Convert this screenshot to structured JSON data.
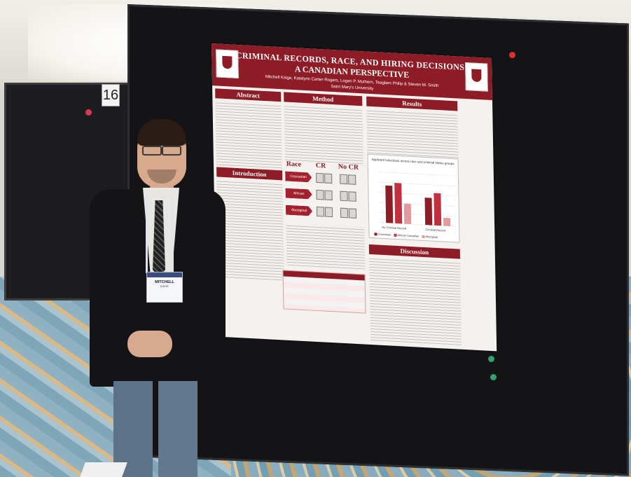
{
  "scene": {
    "board_number": "16"
  },
  "poster": {
    "title_line1": "CRIMINAL RECORDS, RACE, AND HIRING DECISIONS:",
    "title_line2": "A CANADIAN PERSPECTIVE",
    "authors": "Mitchell Kaige, Katelynn Carter-Rogers, Logan P. Mulhern, Teagben Philip & Steven M. Smith",
    "institution": "Saint Mary's University",
    "sections": {
      "abstract": "Abstract",
      "method": "Method",
      "results": "Results",
      "introduction": "Introduction",
      "discussion": "Discussion"
    },
    "method_panel": {
      "col_race": "Race",
      "col_cr": "CR",
      "col_nocr": "No CR",
      "rows": [
        "Caucasian",
        "African Canadian",
        "Aboriginal"
      ]
    }
  },
  "chart_data": {
    "type": "bar",
    "title": "Applicant selections across race and criminal status groups",
    "categories": [
      "No Criminal Record",
      "Criminal Record"
    ],
    "series": [
      {
        "name": "Caucasian",
        "values": [
          37,
          27
        ]
      },
      {
        "name": "African Canadian",
        "values": [
          40,
          32
        ]
      },
      {
        "name": "Aboriginal",
        "values": [
          20,
          8
        ]
      }
    ],
    "ylim": [
      0,
      50
    ],
    "colors": [
      "#8e1c27",
      "#c0303e",
      "#e29a9f"
    ]
  },
  "badge": {
    "name": "MITCHELL",
    "sub": "KAIGE"
  }
}
